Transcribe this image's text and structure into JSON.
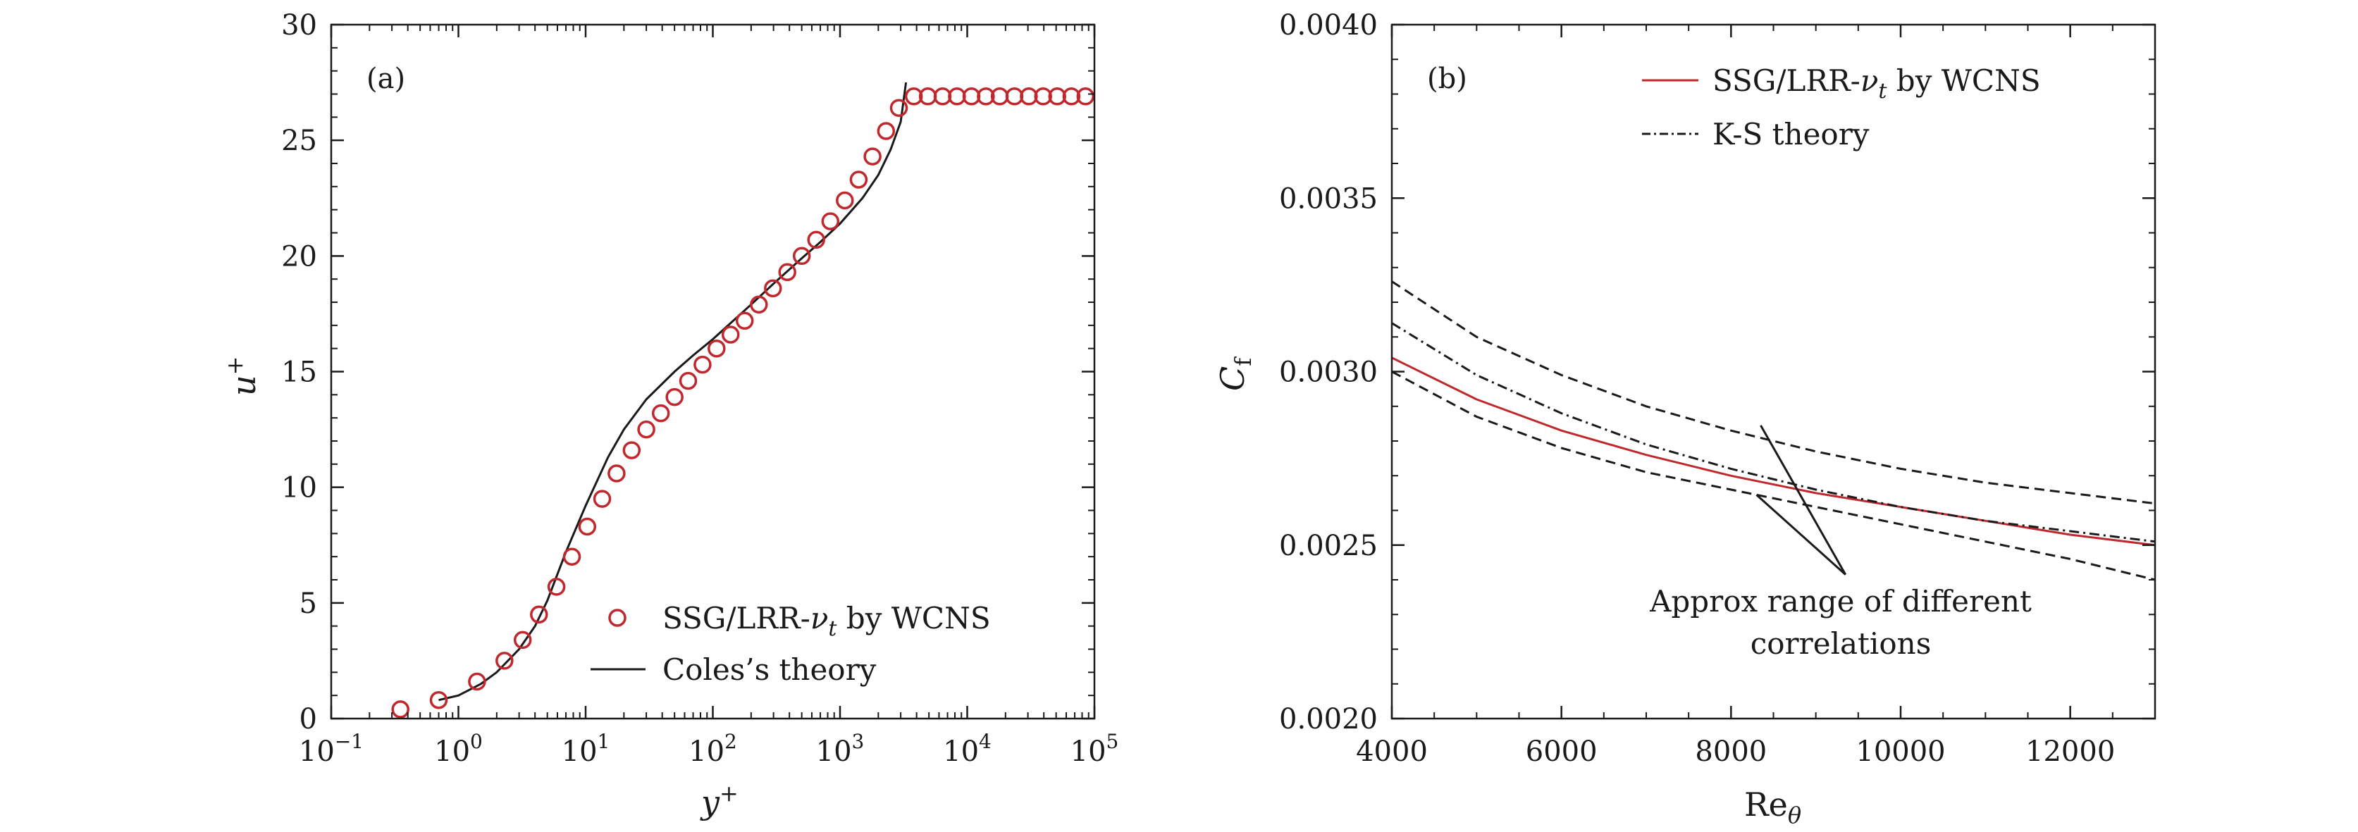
{
  "chart_data": [
    {
      "panel": "(a)",
      "type": "line",
      "xscale": "log",
      "xlabel": "y",
      "xlabel_sup": "+",
      "ylabel": "u",
      "ylabel_sup": "+",
      "xlim": [
        0.1,
        100000
      ],
      "ylim": [
        0,
        30
      ],
      "xticks": [
        {
          "value": 0.1,
          "base": "10",
          "exp": "−1"
        },
        {
          "value": 1,
          "base": "10",
          "exp": "0"
        },
        {
          "value": 10,
          "base": "10",
          "exp": "1"
        },
        {
          "value": 100,
          "base": "10",
          "exp": "2"
        },
        {
          "value": 1000,
          "base": "10",
          "exp": "3"
        },
        {
          "value": 10000,
          "base": "10",
          "exp": "4"
        },
        {
          "value": 100000,
          "base": "10",
          "exp": "5"
        }
      ],
      "yticks": [
        0,
        5,
        10,
        15,
        20,
        25,
        30
      ],
      "legend_position": "bottom-right",
      "series": [
        {
          "name_main": "SSG/LRR-",
          "name_sym": "ν",
          "name_sub": "t",
          "name_tail": " by WCNS",
          "kind": "markers",
          "color": "#c0282d",
          "x": [
            0.35,
            0.7,
            1.4,
            2.3,
            3.2,
            4.3,
            5.9,
            7.8,
            10.3,
            13.5,
            17.5,
            23,
            30,
            39,
            50,
            64,
            83,
            107,
            138,
            178,
            230,
            297,
            385,
            500,
            650,
            840,
            1090,
            1400,
            1800,
            2300,
            2900,
            3800,
            4900,
            6400,
            8300,
            10800,
            14000,
            18000,
            23500,
            30500,
            39500,
            51000,
            66000,
            85000
          ],
          "y": [
            0.4,
            0.8,
            1.6,
            2.5,
            3.4,
            4.5,
            5.7,
            7.0,
            8.3,
            9.5,
            10.6,
            11.6,
            12.5,
            13.2,
            13.9,
            14.6,
            15.3,
            16.0,
            16.6,
            17.2,
            17.9,
            18.6,
            19.3,
            20.0,
            20.7,
            21.5,
            22.4,
            23.3,
            24.3,
            25.4,
            26.4,
            26.9,
            26.9,
            26.9,
            26.9,
            26.9,
            26.9,
            26.9,
            26.9,
            26.9,
            26.9,
            26.9,
            26.9,
            26.9
          ]
        },
        {
          "name": "Coles’s theory",
          "kind": "line",
          "color": "#1a1a1a",
          "x": [
            0.7,
            1.0,
            1.5,
            2.0,
            3.0,
            4.0,
            5.0,
            7.0,
            10,
            15,
            20,
            30,
            50,
            70,
            100,
            200,
            300,
            500,
            700,
            1000,
            1500,
            2000,
            2500,
            3000,
            3300
          ],
          "y": [
            0.8,
            1.0,
            1.5,
            2.0,
            3.0,
            4.0,
            5.1,
            7.2,
            9.2,
            11.3,
            12.5,
            13.8,
            15.0,
            15.7,
            16.4,
            17.9,
            18.8,
            19.9,
            20.6,
            21.4,
            22.5,
            23.5,
            24.6,
            25.8,
            27.5
          ]
        }
      ]
    },
    {
      "panel": "(b)",
      "type": "line",
      "xlabel": "Re",
      "xlabel_sub": "θ",
      "ylabel": "C",
      "ylabel_sub": "f",
      "xlim": [
        4000,
        13000
      ],
      "ylim": [
        0.002,
        0.004
      ],
      "xticks": [
        4000,
        6000,
        8000,
        10000,
        12000
      ],
      "yticks": [
        {
          "value": 0.002,
          "label": "0.0020"
        },
        {
          "value": 0.0025,
          "label": "0.0025"
        },
        {
          "value": 0.003,
          "label": "0.0030"
        },
        {
          "value": 0.0035,
          "label": "0.0035"
        },
        {
          "value": 0.004,
          "label": "0.0040"
        }
      ],
      "legend_position": "top-right",
      "series": [
        {
          "name_main": "SSG/LRR-",
          "name_sym": "ν",
          "name_sub": "t",
          "name_tail": " by WCNS",
          "kind": "line",
          "color": "#c0282d",
          "x": [
            4000,
            5000,
            6000,
            7000,
            8000,
            9000,
            10000,
            11000,
            12000,
            13000
          ],
          "y": [
            0.00304,
            0.00292,
            0.00283,
            0.00276,
            0.0027,
            0.00265,
            0.00261,
            0.00257,
            0.00253,
            0.0025
          ]
        },
        {
          "name": "K-S theory",
          "kind": "dashdot",
          "color": "#1a1a1a",
          "x": [
            4000,
            5000,
            6000,
            7000,
            8000,
            9000,
            10000,
            11000,
            12000,
            13000
          ],
          "y": [
            0.00314,
            0.00299,
            0.00288,
            0.00279,
            0.00272,
            0.00266,
            0.00261,
            0.00257,
            0.00254,
            0.00251
          ]
        },
        {
          "name": "",
          "kind": "dashed",
          "color": "#1a1a1a",
          "x": [
            4000,
            5000,
            6000,
            7000,
            8000,
            9000,
            10000,
            11000,
            12000,
            13000
          ],
          "y": [
            0.00326,
            0.0031,
            0.00299,
            0.0029,
            0.00283,
            0.00277,
            0.00272,
            0.00268,
            0.00265,
            0.00262
          ]
        },
        {
          "name": "",
          "kind": "dashed",
          "color": "#1a1a1a",
          "x": [
            4000,
            5000,
            6000,
            7000,
            8000,
            9000,
            10000,
            11000,
            12000,
            13000
          ],
          "y": [
            0.003,
            0.00287,
            0.00278,
            0.00271,
            0.00266,
            0.00261,
            0.00256,
            0.00251,
            0.00246,
            0.0024
          ]
        }
      ],
      "annotation": {
        "line1": "Approx range of different",
        "line2": "correlations",
        "targets": [
          {
            "x": 8350,
            "y": 0.002845
          },
          {
            "x": 8300,
            "y": 0.002645
          }
        ],
        "apex": {
          "x": 9350,
          "y": 0.002415
        }
      }
    }
  ]
}
